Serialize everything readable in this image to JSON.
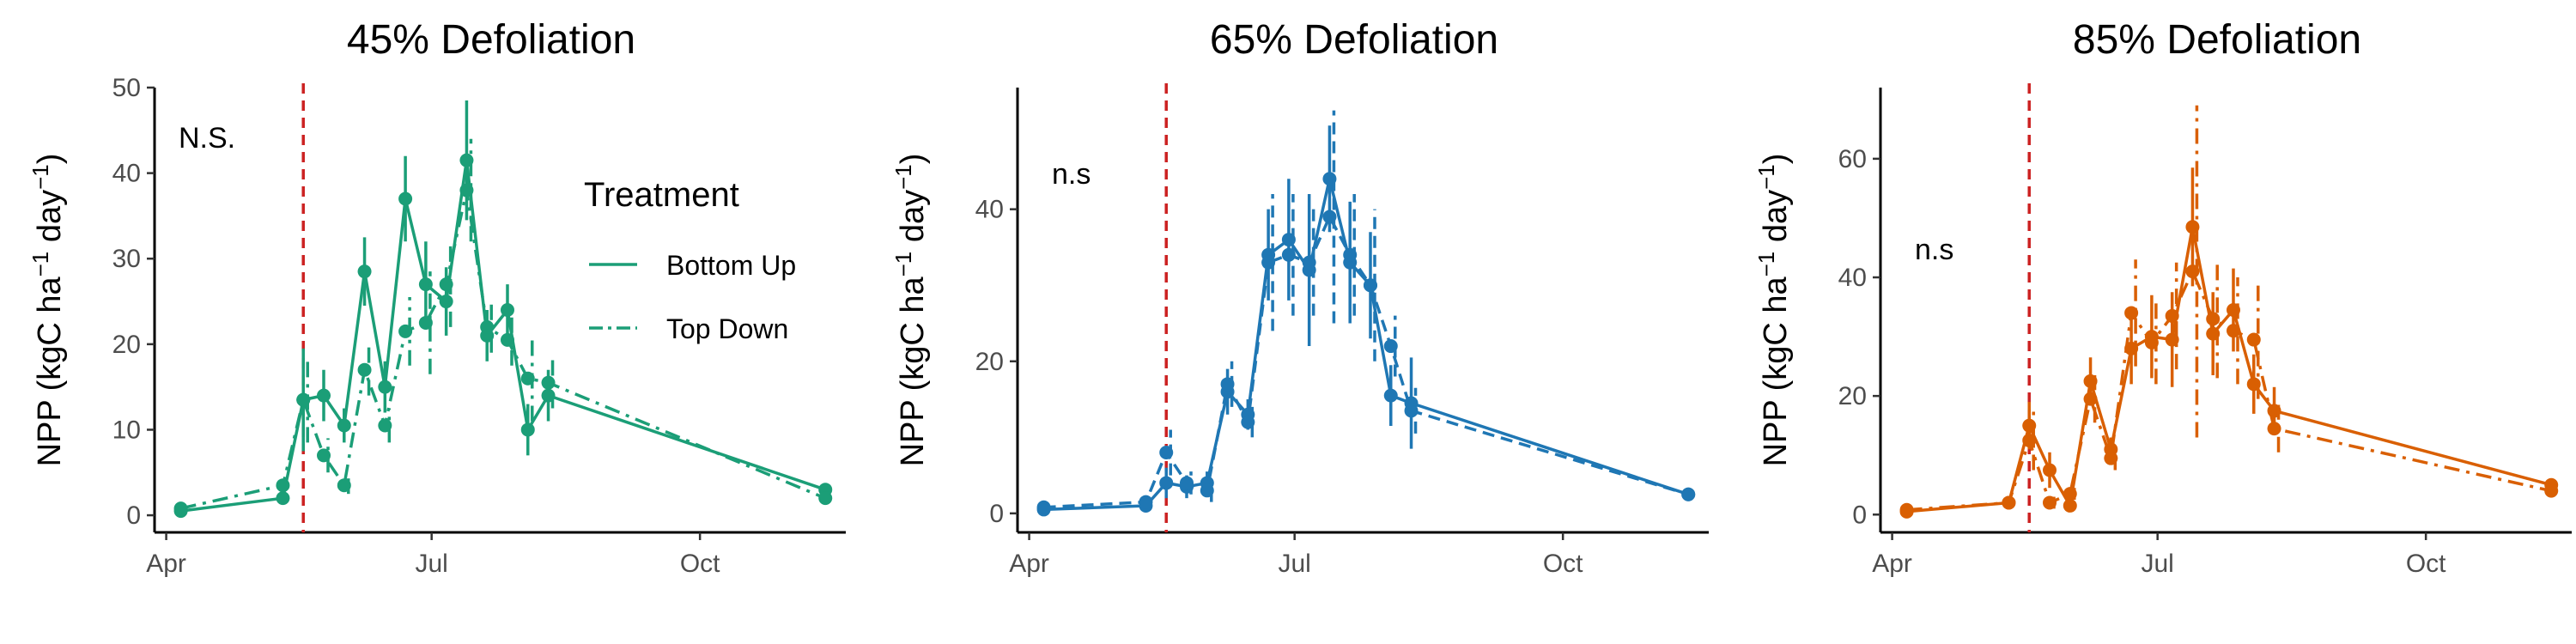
{
  "chart_data": [
    {
      "type": "line",
      "title": "45% Defoliation",
      "ylabel_main": "NPP (kgC ha",
      "ylabel_sup1": "−1",
      "ylabel_mid": " day",
      "ylabel_sup2": "−1",
      "ylabel_end": ")",
      "annotation": "N.S.",
      "color": "#1b9e77",
      "ylim": [
        -2,
        50
      ],
      "yticks": [
        0,
        10,
        20,
        30,
        40,
        50
      ],
      "xlim": [
        "2020-03-28",
        "2020-11-20"
      ],
      "xticks": [
        {
          "date": "2020-04-01",
          "label": "Apr"
        },
        {
          "date": "2020-07-01",
          "label": "Jul"
        },
        {
          "date": "2020-10-01",
          "label": "Oct"
        }
      ],
      "vline_date": "2020-05-18",
      "vline_color": "#cc2222",
      "series": [
        {
          "name": "Bottom Up",
          "dash": "solid",
          "points": [
            {
              "x": "2020-04-06",
              "y": 0.5,
              "err": 0
            },
            {
              "x": "2020-05-11",
              "y": 2,
              "err": 0
            },
            {
              "x": "2020-05-18",
              "y": 13.5,
              "err": 6
            },
            {
              "x": "2020-05-25",
              "y": 14,
              "err": 3
            },
            {
              "x": "2020-06-01",
              "y": 10.5,
              "err": 2
            },
            {
              "x": "2020-06-08",
              "y": 28.5,
              "err": 4
            },
            {
              "x": "2020-06-15",
              "y": 15,
              "err": 3
            },
            {
              "x": "2020-06-22",
              "y": 37,
              "err": 5
            },
            {
              "x": "2020-06-29",
              "y": 27,
              "err": 5
            },
            {
              "x": "2020-07-06",
              "y": 25,
              "err": 4
            },
            {
              "x": "2020-07-13",
              "y": 41.5,
              "err": 7
            },
            {
              "x": "2020-07-20",
              "y": 21,
              "err": 3
            },
            {
              "x": "2020-07-27",
              "y": 24,
              "err": 3
            },
            {
              "x": "2020-08-03",
              "y": 10,
              "err": 3
            },
            {
              "x": "2020-08-10",
              "y": 14,
              "err": 3
            },
            {
              "x": "2020-11-13",
              "y": 3,
              "err": 0
            }
          ]
        },
        {
          "name": "Top Down",
          "dash": "dashdot",
          "points": [
            {
              "x": "2020-04-06",
              "y": 0.8,
              "err": 0
            },
            {
              "x": "2020-05-11",
              "y": 3.5,
              "err": 0
            },
            {
              "x": "2020-05-18",
              "y": 13.5,
              "err": 5
            },
            {
              "x": "2020-05-25",
              "y": 7,
              "err": 2
            },
            {
              "x": "2020-06-01",
              "y": 3.5,
              "err": 1
            },
            {
              "x": "2020-06-08",
              "y": 17,
              "err": 3
            },
            {
              "x": "2020-06-15",
              "y": 10.5,
              "err": 2
            },
            {
              "x": "2020-06-22",
              "y": 21.5,
              "err": 4
            },
            {
              "x": "2020-06-29",
              "y": 22.5,
              "err": 6
            },
            {
              "x": "2020-07-06",
              "y": 27,
              "err": 5
            },
            {
              "x": "2020-07-13",
              "y": 38,
              "err": 6
            },
            {
              "x": "2020-07-20",
              "y": 22,
              "err": 3
            },
            {
              "x": "2020-07-27",
              "y": 20.5,
              "err": 3
            },
            {
              "x": "2020-08-03",
              "y": 16,
              "err": 5
            },
            {
              "x": "2020-08-10",
              "y": 15.5,
              "err": 3
            },
            {
              "x": "2020-11-13",
              "y": 2,
              "err": 0
            }
          ]
        }
      ],
      "legend": {
        "title": "Treatment",
        "placement": "right",
        "entries": [
          {
            "label": "Bottom Up",
            "dash": "solid"
          },
          {
            "label": "Top Down",
            "dash": "dashdot"
          }
        ]
      }
    },
    {
      "type": "line",
      "title": "65% Defoliation",
      "ylabel_main": "NPP (kgC ha",
      "ylabel_sup1": "−1",
      "ylabel_mid": " day",
      "ylabel_sup2": "−1",
      "ylabel_end": ")",
      "annotation": "n.s",
      "color": "#1f77b4",
      "ylim": [
        -2.5,
        56
      ],
      "yticks": [
        0,
        20,
        40
      ],
      "xlim": [
        "2020-03-28",
        "2020-11-20"
      ],
      "xticks": [
        {
          "date": "2020-04-01",
          "label": "Apr"
        },
        {
          "date": "2020-07-01",
          "label": "Jul"
        },
        {
          "date": "2020-10-01",
          "label": "Oct"
        }
      ],
      "vline_date": "2020-05-18",
      "vline_color": "#cc2222",
      "series": [
        {
          "name": "Bottom Up",
          "dash": "solid",
          "points": [
            {
              "x": "2020-04-06",
              "y": 0.5,
              "err": 0
            },
            {
              "x": "2020-05-11",
              "y": 1,
              "err": 0
            },
            {
              "x": "2020-05-18",
              "y": 4,
              "err": 2
            },
            {
              "x": "2020-05-25",
              "y": 3.5,
              "err": 1.5
            },
            {
              "x": "2020-06-01",
              "y": 4,
              "err": 1.5
            },
            {
              "x": "2020-06-08",
              "y": 16,
              "err": 3
            },
            {
              "x": "2020-06-15",
              "y": 13,
              "err": 2
            },
            {
              "x": "2020-06-22",
              "y": 34,
              "err": 6
            },
            {
              "x": "2020-06-29",
              "y": 36,
              "err": 8
            },
            {
              "x": "2020-07-06",
              "y": 32,
              "err": 10
            },
            {
              "x": "2020-07-13",
              "y": 44,
              "err": 7
            },
            {
              "x": "2020-07-20",
              "y": 33,
              "err": 8
            },
            {
              "x": "2020-07-27",
              "y": 30,
              "err": 7
            },
            {
              "x": "2020-08-03",
              "y": 15.5,
              "err": 4
            },
            {
              "x": "2020-08-10",
              "y": 14.5,
              "err": 6
            },
            {
              "x": "2020-11-13",
              "y": 2.5,
              "err": 0
            }
          ]
        },
        {
          "name": "Top Down",
          "dash": "dashed",
          "points": [
            {
              "x": "2020-04-06",
              "y": 0.8,
              "err": 0
            },
            {
              "x": "2020-05-11",
              "y": 1.5,
              "err": 0
            },
            {
              "x": "2020-05-18",
              "y": 8,
              "err": 3
            },
            {
              "x": "2020-05-25",
              "y": 4,
              "err": 1.5
            },
            {
              "x": "2020-06-01",
              "y": 3,
              "err": 1.5
            },
            {
              "x": "2020-06-08",
              "y": 17,
              "err": 3
            },
            {
              "x": "2020-06-15",
              "y": 12,
              "err": 2
            },
            {
              "x": "2020-06-22",
              "y": 33,
              "err": 9
            },
            {
              "x": "2020-06-29",
              "y": 34,
              "err": 8
            },
            {
              "x": "2020-07-06",
              "y": 33,
              "err": 7
            },
            {
              "x": "2020-07-13",
              "y": 39,
              "err": 14
            },
            {
              "x": "2020-07-20",
              "y": 34,
              "err": 8
            },
            {
              "x": "2020-07-27",
              "y": 30,
              "err": 10
            },
            {
              "x": "2020-08-03",
              "y": 22,
              "err": 4
            },
            {
              "x": "2020-08-10",
              "y": 13.5,
              "err": 3
            },
            {
              "x": "2020-11-13",
              "y": 2.5,
              "err": 0
            }
          ]
        }
      ]
    },
    {
      "type": "line",
      "title": "85% Defoliation",
      "ylabel_main": "NPP (kgC ha",
      "ylabel_sup1": "−1",
      "ylabel_mid": " day",
      "ylabel_sup2": "−1",
      "ylabel_end": ")",
      "annotation": "n.s",
      "color": "#d95f02",
      "ylim": [
        -3,
        72
      ],
      "yticks": [
        0,
        20,
        40,
        60
      ],
      "xlim": [
        "2020-03-28",
        "2020-11-20"
      ],
      "xticks": [
        {
          "date": "2020-04-01",
          "label": "Apr"
        },
        {
          "date": "2020-07-01",
          "label": "Jul"
        },
        {
          "date": "2020-10-01",
          "label": "Oct"
        }
      ],
      "vline_date": "2020-05-18",
      "vline_color": "#cc2222",
      "series": [
        {
          "name": "Bottom Up",
          "dash": "solid",
          "points": [
            {
              "x": "2020-04-06",
              "y": 0.5,
              "err": 0
            },
            {
              "x": "2020-05-11",
              "y": 2,
              "err": 0
            },
            {
              "x": "2020-05-18",
              "y": 15,
              "err": 4
            },
            {
              "x": "2020-05-25",
              "y": 7.5,
              "err": 3
            },
            {
              "x": "2020-06-01",
              "y": 1.5,
              "err": 1
            },
            {
              "x": "2020-06-08",
              "y": 22.5,
              "err": 4
            },
            {
              "x": "2020-06-15",
              "y": 11,
              "err": 2
            },
            {
              "x": "2020-06-22",
              "y": 28,
              "err": 6
            },
            {
              "x": "2020-06-29",
              "y": 30,
              "err": 7
            },
            {
              "x": "2020-07-06",
              "y": 29.5,
              "err": 8
            },
            {
              "x": "2020-07-13",
              "y": 48.5,
              "err": 10
            },
            {
              "x": "2020-07-20",
              "y": 30.5,
              "err": 7
            },
            {
              "x": "2020-07-27",
              "y": 34.5,
              "err": 7
            },
            {
              "x": "2020-08-03",
              "y": 22,
              "err": 5
            },
            {
              "x": "2020-08-10",
              "y": 17.5,
              "err": 4
            },
            {
              "x": "2020-11-13",
              "y": 5,
              "err": 0
            }
          ]
        },
        {
          "name": "Top Down",
          "dash": "dashdot",
          "points": [
            {
              "x": "2020-04-06",
              "y": 0.8,
              "err": 0
            },
            {
              "x": "2020-05-11",
              "y": 2,
              "err": 0
            },
            {
              "x": "2020-05-18",
              "y": 12.5,
              "err": 5
            },
            {
              "x": "2020-05-25",
              "y": 2,
              "err": 1
            },
            {
              "x": "2020-06-01",
              "y": 3.5,
              "err": 1
            },
            {
              "x": "2020-06-08",
              "y": 19.5,
              "err": 4
            },
            {
              "x": "2020-06-15",
              "y": 9.5,
              "err": 2
            },
            {
              "x": "2020-06-22",
              "y": 34,
              "err": 9
            },
            {
              "x": "2020-06-29",
              "y": 29,
              "err": 7
            },
            {
              "x": "2020-07-06",
              "y": 33.5,
              "err": 9
            },
            {
              "x": "2020-07-13",
              "y": 41,
              "err": 28
            },
            {
              "x": "2020-07-20",
              "y": 33,
              "err": 10
            },
            {
              "x": "2020-07-27",
              "y": 31,
              "err": 9
            },
            {
              "x": "2020-08-03",
              "y": 29.5,
              "err": 10
            },
            {
              "x": "2020-08-10",
              "y": 14.5,
              "err": 4
            },
            {
              "x": "2020-11-13",
              "y": 4,
              "err": 0
            }
          ]
        }
      ]
    }
  ]
}
